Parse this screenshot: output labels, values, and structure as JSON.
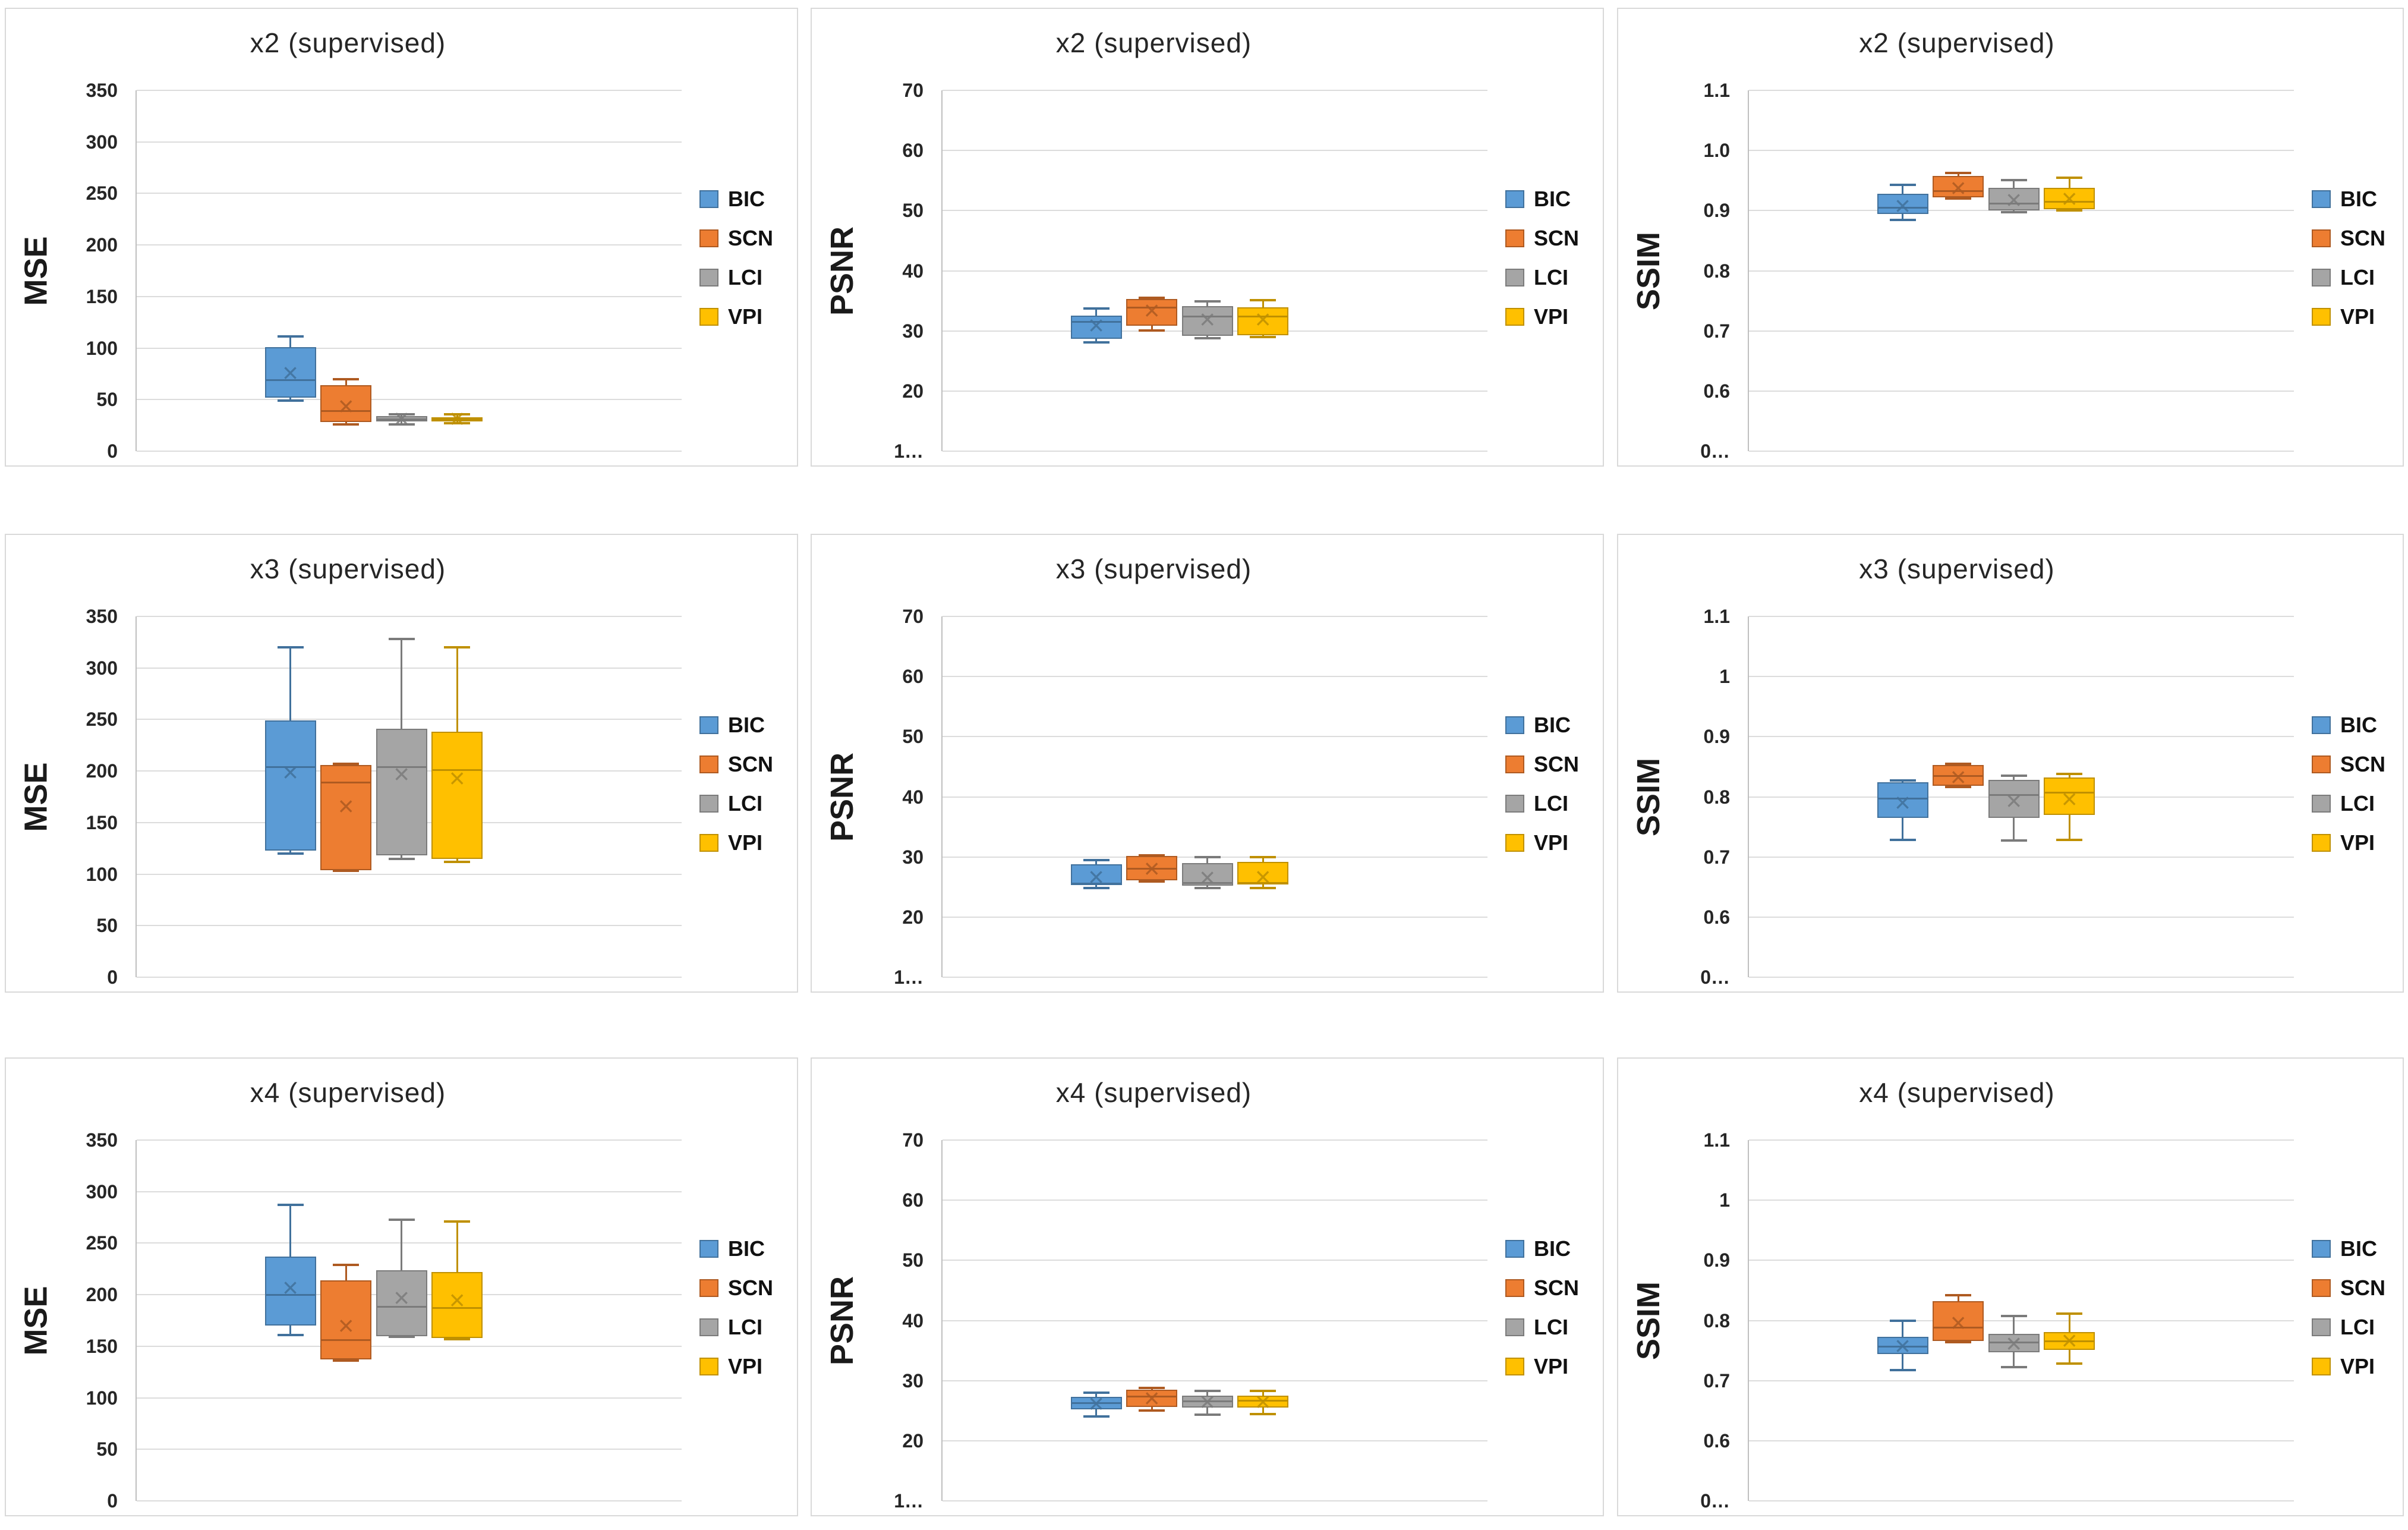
{
  "methods": [
    {
      "name": "BIC",
      "fill": "#5B9BD5",
      "border": "#41719C"
    },
    {
      "name": "SCN",
      "fill": "#ED7D31",
      "border": "#AE5A21"
    },
    {
      "name": "LCI",
      "fill": "#A5A5A5",
      "border": "#7B7B7B"
    },
    {
      "name": "VPI",
      "fill": "#FFC000",
      "border": "#BF9000"
    }
  ],
  "style_colors": {
    "panel_border": "#D9D9D9",
    "gridline": "#DCDCDC",
    "axis_line": "#BFBFBF",
    "text": "#262626"
  },
  "chart_data": [
    {
      "type": "boxplot",
      "title": "x2 (supervised)",
      "ylabel": "MSE",
      "ylim": [
        0,
        350
      ],
      "grid": true,
      "legend_position": "right",
      "yticks": [
        {
          "v": 350,
          "label": "350"
        },
        {
          "v": 300,
          "label": "300"
        },
        {
          "v": 250,
          "label": "250"
        },
        {
          "v": 200,
          "label": "200"
        },
        {
          "v": 150,
          "label": "150"
        },
        {
          "v": 100,
          "label": "100"
        },
        {
          "v": 50,
          "label": "50"
        },
        {
          "v": 0,
          "label": "0"
        }
      ],
      "series": [
        {
          "name": "BIC",
          "min": 49,
          "q1": 52,
          "median": 69,
          "mean": 76,
          "q3": 101,
          "max": 111
        },
        {
          "name": "SCN",
          "min": 26,
          "q1": 28,
          "median": 39,
          "mean": 44,
          "q3": 64,
          "max": 70
        },
        {
          "name": "LCI",
          "min": 26,
          "q1": 29,
          "median": 31,
          "mean": 32,
          "q3": 34,
          "max": 36
        },
        {
          "name": "VPI",
          "min": 27,
          "q1": 29,
          "median": 31,
          "mean": 32,
          "q3": 33,
          "max": 36
        }
      ]
    },
    {
      "type": "boxplot",
      "title": "x2 (supervised)",
      "ylabel": "PSNR",
      "ylim": [
        10,
        70
      ],
      "grid": true,
      "legend_position": "right",
      "yticks": [
        {
          "v": 70,
          "label": "70"
        },
        {
          "v": 60,
          "label": "60"
        },
        {
          "v": 50,
          "label": "50"
        },
        {
          "v": 40,
          "label": "40"
        },
        {
          "v": 30,
          "label": "30"
        },
        {
          "v": 20,
          "label": "20"
        },
        {
          "v": 10,
          "label": "1…"
        }
      ],
      "series": [
        {
          "name": "BIC",
          "min": 28.1,
          "q1": 28.7,
          "median": 31.5,
          "mean": 31.0,
          "q3": 32.5,
          "max": 33.7
        },
        {
          "name": "SCN",
          "min": 30.1,
          "q1": 30.9,
          "median": 33.9,
          "mean": 33.4,
          "q3": 35.3,
          "max": 35.5
        },
        {
          "name": "LCI",
          "min": 28.8,
          "q1": 29.2,
          "median": 32.4,
          "mean": 31.9,
          "q3": 34.1,
          "max": 34.9
        },
        {
          "name": "VPI",
          "min": 29.0,
          "q1": 29.3,
          "median": 32.4,
          "mean": 31.9,
          "q3": 33.9,
          "max": 35.1
        }
      ]
    },
    {
      "type": "boxplot",
      "title": "x2 (supervised)",
      "ylabel": "SSIM",
      "ylim": [
        0.5,
        1.1
      ],
      "grid": true,
      "legend_position": "right",
      "yticks": [
        {
          "v": 1.1,
          "label": "1.1"
        },
        {
          "v": 1.0,
          "label": "1.0"
        },
        {
          "v": 0.9,
          "label": "0.9"
        },
        {
          "v": 0.8,
          "label": "0.8"
        },
        {
          "v": 0.7,
          "label": "0.7"
        },
        {
          "v": 0.6,
          "label": "0.6"
        },
        {
          "v": 0.5,
          "label": "0…"
        }
      ],
      "series": [
        {
          "name": "BIC",
          "min": 0.885,
          "q1": 0.894,
          "median": 0.905,
          "mean": 0.908,
          "q3": 0.928,
          "max": 0.943
        },
        {
          "name": "SCN",
          "min": 0.92,
          "q1": 0.922,
          "median": 0.932,
          "mean": 0.938,
          "q3": 0.958,
          "max": 0.963
        },
        {
          "name": "LCI",
          "min": 0.897,
          "q1": 0.9,
          "median": 0.912,
          "mean": 0.918,
          "q3": 0.938,
          "max": 0.951
        },
        {
          "name": "VPI",
          "min": 0.9,
          "q1": 0.902,
          "median": 0.915,
          "mean": 0.92,
          "q3": 0.938,
          "max": 0.955
        }
      ]
    },
    {
      "type": "boxplot",
      "title": "x3 (supervised)",
      "ylabel": "MSE",
      "ylim": [
        0,
        350
      ],
      "grid": true,
      "legend_position": "right",
      "yticks": [
        {
          "v": 350,
          "label": "350"
        },
        {
          "v": 300,
          "label": "300"
        },
        {
          "v": 250,
          "label": "250"
        },
        {
          "v": 200,
          "label": "200"
        },
        {
          "v": 150,
          "label": "150"
        },
        {
          "v": 100,
          "label": "100"
        },
        {
          "v": 50,
          "label": "50"
        },
        {
          "v": 0,
          "label": "0"
        }
      ],
      "series": [
        {
          "name": "BIC",
          "min": 120,
          "q1": 123,
          "median": 204,
          "mean": 199,
          "q3": 249,
          "max": 320
        },
        {
          "name": "SCN",
          "min": 103,
          "q1": 104,
          "median": 189,
          "mean": 166,
          "q3": 206,
          "max": 207
        },
        {
          "name": "LCI",
          "min": 115,
          "q1": 118,
          "median": 204,
          "mean": 197,
          "q3": 241,
          "max": 328
        },
        {
          "name": "VPI",
          "min": 112,
          "q1": 115,
          "median": 201,
          "mean": 193,
          "q3": 238,
          "max": 320
        }
      ]
    },
    {
      "type": "boxplot",
      "title": "x3 (supervised)",
      "ylabel": "PSNR",
      "ylim": [
        10,
        70
      ],
      "grid": true,
      "legend_position": "right",
      "yticks": [
        {
          "v": 70,
          "label": "70"
        },
        {
          "v": 60,
          "label": "60"
        },
        {
          "v": 50,
          "label": "50"
        },
        {
          "v": 40,
          "label": "40"
        },
        {
          "v": 30,
          "label": "30"
        },
        {
          "v": 20,
          "label": "20"
        },
        {
          "v": 10,
          "label": "1…"
        }
      ],
      "series": [
        {
          "name": "BIC",
          "min": 24.8,
          "q1": 25.3,
          "median": 25.6,
          "mean": 26.7,
          "q3": 28.8,
          "max": 29.5
        },
        {
          "name": "SCN",
          "min": 25.9,
          "q1": 26.1,
          "median": 28.0,
          "mean": 28.1,
          "q3": 30.2,
          "max": 30.3
        },
        {
          "name": "LCI",
          "min": 24.8,
          "q1": 25.2,
          "median": 25.7,
          "mean": 26.6,
          "q3": 29.0,
          "max": 30.0
        },
        {
          "name": "VPI",
          "min": 24.8,
          "q1": 25.4,
          "median": 25.7,
          "mean": 26.7,
          "q3": 29.2,
          "max": 30.0
        }
      ]
    },
    {
      "type": "boxplot",
      "title": "x3 (supervised)",
      "ylabel": "SSIM",
      "ylim": [
        0.5,
        1.1
      ],
      "grid": true,
      "legend_position": "right",
      "yticks": [
        {
          "v": 1.1,
          "label": "1.1"
        },
        {
          "v": 1.0,
          "label": "1"
        },
        {
          "v": 0.9,
          "label": "0.9"
        },
        {
          "v": 0.8,
          "label": "0.8"
        },
        {
          "v": 0.7,
          "label": "0.7"
        },
        {
          "v": 0.6,
          "label": "0.6"
        },
        {
          "v": 0.5,
          "label": "0…"
        }
      ],
      "series": [
        {
          "name": "BIC",
          "min": 0.728,
          "q1": 0.765,
          "median": 0.797,
          "mean": 0.791,
          "q3": 0.824,
          "max": 0.827
        },
        {
          "name": "SCN",
          "min": 0.816,
          "q1": 0.818,
          "median": 0.835,
          "mean": 0.833,
          "q3": 0.853,
          "max": 0.855
        },
        {
          "name": "LCI",
          "min": 0.727,
          "q1": 0.765,
          "median": 0.803,
          "mean": 0.794,
          "q3": 0.828,
          "max": 0.835
        },
        {
          "name": "VPI",
          "min": 0.728,
          "q1": 0.77,
          "median": 0.807,
          "mean": 0.797,
          "q3": 0.832,
          "max": 0.838
        }
      ]
    },
    {
      "type": "boxplot",
      "title": "x4 (supervised)",
      "ylabel": "MSE",
      "ylim": [
        0,
        350
      ],
      "grid": true,
      "legend_position": "right",
      "yticks": [
        {
          "v": 350,
          "label": "350"
        },
        {
          "v": 300,
          "label": "300"
        },
        {
          "v": 250,
          "label": "250"
        },
        {
          "v": 200,
          "label": "200"
        },
        {
          "v": 150,
          "label": "150"
        },
        {
          "v": 100,
          "label": "100"
        },
        {
          "v": 50,
          "label": "50"
        },
        {
          "v": 0,
          "label": "0"
        }
      ],
      "series": [
        {
          "name": "BIC",
          "min": 161,
          "q1": 170,
          "median": 200,
          "mean": 207,
          "q3": 237,
          "max": 287
        },
        {
          "name": "SCN",
          "min": 136,
          "q1": 137,
          "median": 156,
          "mean": 170,
          "q3": 214,
          "max": 229
        },
        {
          "name": "LCI",
          "min": 159,
          "q1": 160,
          "median": 188,
          "mean": 197,
          "q3": 224,
          "max": 273
        },
        {
          "name": "VPI",
          "min": 157,
          "q1": 158,
          "median": 187,
          "mean": 195,
          "q3": 222,
          "max": 271
        }
      ]
    },
    {
      "type": "boxplot",
      "title": "x4 (supervised)",
      "ylabel": "PSNR",
      "ylim": [
        10,
        70
      ],
      "grid": true,
      "legend_position": "right",
      "yticks": [
        {
          "v": 70,
          "label": "70"
        },
        {
          "v": 60,
          "label": "60"
        },
        {
          "v": 50,
          "label": "50"
        },
        {
          "v": 40,
          "label": "40"
        },
        {
          "v": 30,
          "label": "30"
        },
        {
          "v": 20,
          "label": "20"
        },
        {
          "v": 10,
          "label": "1…"
        }
      ],
      "series": [
        {
          "name": "BIC",
          "min": 24.0,
          "q1": 25.2,
          "median": 26.3,
          "mean": 26.2,
          "q3": 27.3,
          "max": 28.0
        },
        {
          "name": "SCN",
          "min": 25.0,
          "q1": 25.6,
          "median": 27.3,
          "mean": 27.1,
          "q3": 28.5,
          "max": 28.8
        },
        {
          "name": "LCI",
          "min": 24.3,
          "q1": 25.5,
          "median": 26.6,
          "mean": 26.5,
          "q3": 27.5,
          "max": 28.3
        },
        {
          "name": "VPI",
          "min": 24.4,
          "q1": 25.5,
          "median": 26.7,
          "mean": 26.5,
          "q3": 27.5,
          "max": 28.3
        }
      ]
    },
    {
      "type": "boxplot",
      "title": "x4 (supervised)",
      "ylabel": "SSIM",
      "ylim": [
        0.5,
        1.1
      ],
      "grid": true,
      "legend_position": "right",
      "yticks": [
        {
          "v": 1.1,
          "label": "1.1"
        },
        {
          "v": 1.0,
          "label": "1"
        },
        {
          "v": 0.9,
          "label": "0.9"
        },
        {
          "v": 0.8,
          "label": "0.8"
        },
        {
          "v": 0.7,
          "label": "0.7"
        },
        {
          "v": 0.6,
          "label": "0.6"
        },
        {
          "v": 0.5,
          "label": "0…"
        }
      ],
      "series": [
        {
          "name": "BIC",
          "min": 0.717,
          "q1": 0.744,
          "median": 0.757,
          "mean": 0.758,
          "q3": 0.773,
          "max": 0.8
        },
        {
          "name": "SCN",
          "min": 0.764,
          "q1": 0.766,
          "median": 0.788,
          "mean": 0.797,
          "q3": 0.832,
          "max": 0.842
        },
        {
          "name": "LCI",
          "min": 0.722,
          "q1": 0.747,
          "median": 0.763,
          "mean": 0.762,
          "q3": 0.778,
          "max": 0.807
        },
        {
          "name": "VPI",
          "min": 0.728,
          "q1": 0.751,
          "median": 0.765,
          "mean": 0.767,
          "q3": 0.781,
          "max": 0.811
        }
      ]
    }
  ]
}
